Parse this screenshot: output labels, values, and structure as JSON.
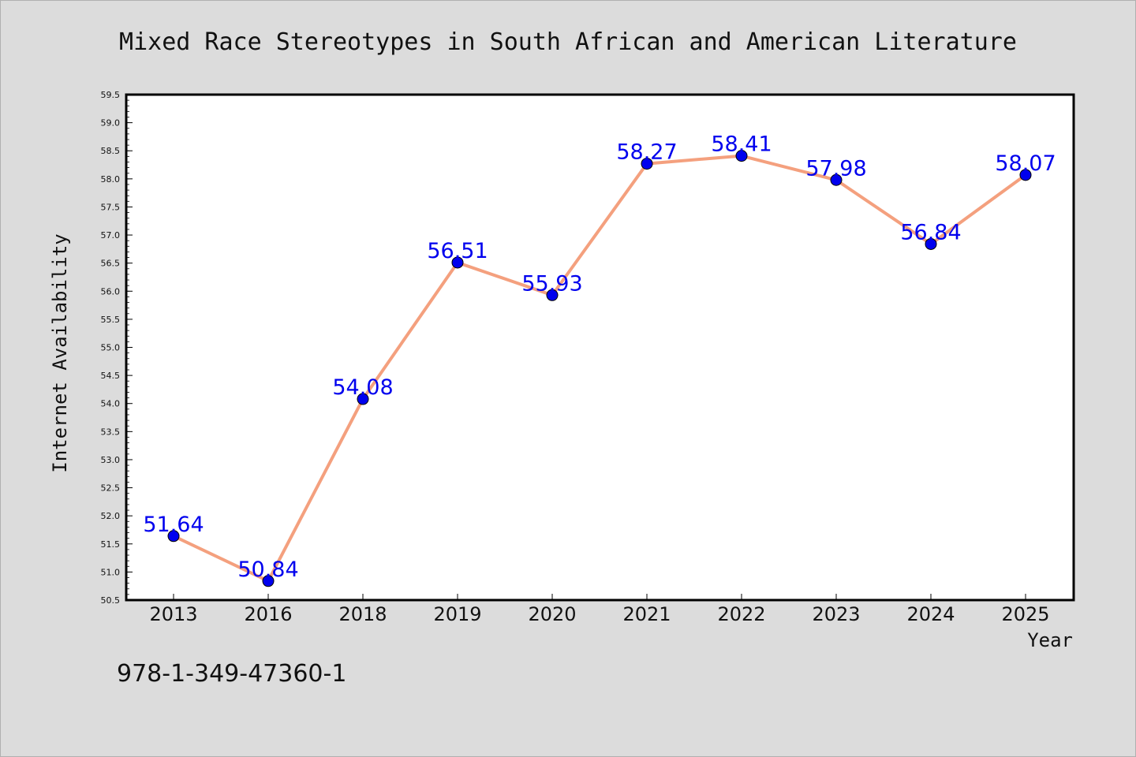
{
  "chart_data": {
    "type": "line",
    "title": "Mixed Race Stereotypes in South African and American Literature",
    "xlabel": "Year",
    "ylabel": "Internet Availability",
    "categories": [
      "2013",
      "2016",
      "2018",
      "2019",
      "2020",
      "2021",
      "2022",
      "2023",
      "2024",
      "2025"
    ],
    "series": [
      {
        "values": [
          51.64,
          50.84,
          54.08,
          56.51,
          55.93,
          58.27,
          58.41,
          57.98,
          56.84,
          58.07
        ],
        "line_color": "#f4a07e",
        "marker_color": "#0000ee",
        "label_color": "#0000ee"
      }
    ],
    "data_labels": [
      "51.64",
      "50.84",
      "54.08",
      "56.51",
      "55.93",
      "58.27",
      "58.41",
      "57.98",
      "56.84",
      "58.07"
    ],
    "ylim": [
      50.5,
      59.5
    ],
    "yticks": [
      "50.5",
      "51.0",
      "51.5",
      "52.0",
      "52.5",
      "53.0",
      "53.5",
      "54.0",
      "54.5",
      "55.0",
      "55.5",
      "56.0",
      "56.5",
      "57.0",
      "57.5",
      "58.0",
      "58.5",
      "59.0",
      "59.5"
    ],
    "grid": false,
    "legend": "none",
    "background": "#dcdcdc",
    "plot_background": "#ffffff"
  },
  "footnote": "978-1-349-47360-1"
}
